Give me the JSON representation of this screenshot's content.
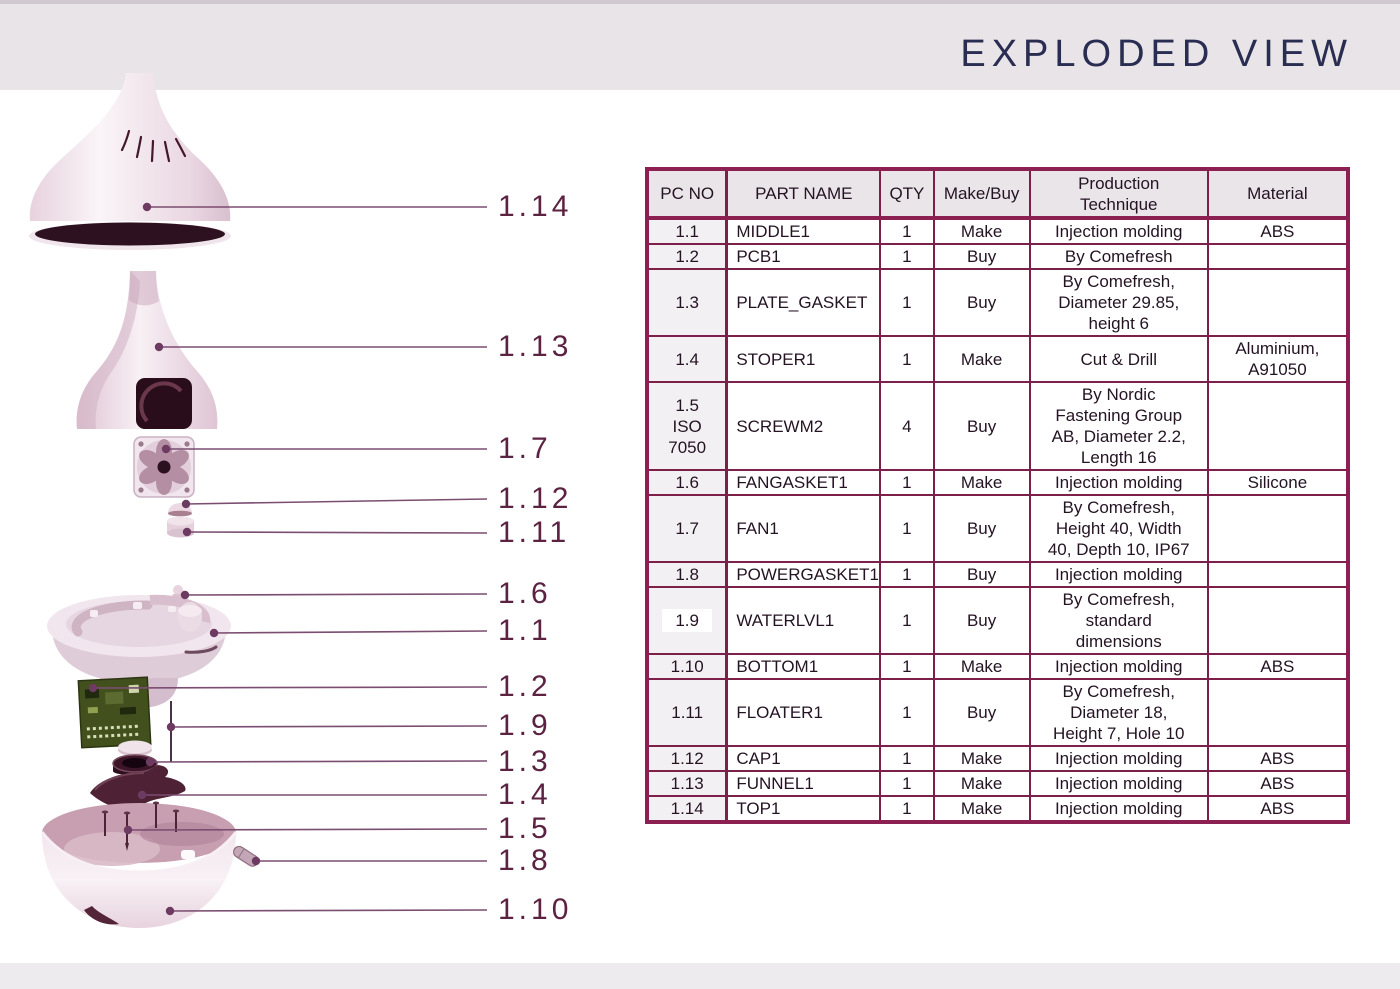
{
  "title": "EXPLODED VIEW",
  "table": {
    "headers": [
      "PC NO",
      "PART NAME",
      "QTY",
      "Make/Buy",
      "Production\nTechnique",
      "Material"
    ],
    "rows": [
      {
        "pc_no": "1.1",
        "part_name": "MIDDLE1",
        "qty": "1",
        "make_buy": "Make",
        "production": "Injection molding",
        "material": "ABS"
      },
      {
        "pc_no": "1.2",
        "part_name": "PCB1",
        "qty": "1",
        "make_buy": "Buy",
        "production": "By Comefresh",
        "material": ""
      },
      {
        "pc_no": "1.3",
        "part_name": "PLATE_GASKET",
        "qty": "1",
        "make_buy": "Buy",
        "production": "By Comefresh,\nDiameter 29.85,\nheight 6",
        "material": ""
      },
      {
        "pc_no": "1.4",
        "part_name": "STOPER1",
        "qty": "1",
        "make_buy": "Make",
        "production": "Cut & Drill",
        "material": "Aluminium,\nA91050"
      },
      {
        "pc_no": "1.5\nISO\n7050",
        "part_name": "SCREWM2",
        "qty": "4",
        "make_buy": "Buy",
        "production": "By Nordic\nFastening Group\nAB, Diameter 2.2,\nLength 16",
        "material": ""
      },
      {
        "pc_no": "1.6",
        "part_name": "FANGASKET1",
        "qty": "1",
        "make_buy": "Make",
        "production": "Injection molding",
        "material": "Silicone"
      },
      {
        "pc_no": "1.7",
        "part_name": "FAN1",
        "qty": "1",
        "make_buy": "Buy",
        "production": "By Comefresh,\nHeight 40, Width\n40, Depth 10, IP67",
        "material": ""
      },
      {
        "pc_no": "1.8",
        "part_name": "POWERGASKET1",
        "qty": "1",
        "make_buy": "Buy",
        "production": "Injection molding",
        "material": ""
      },
      {
        "pc_no": "1.9",
        "part_name": "WATERLVL1",
        "qty": "1",
        "make_buy": "Buy",
        "production": "By Comefresh,\nstandard\ndimensions",
        "material": ""
      },
      {
        "pc_no": "1.10",
        "part_name": "BOTTOM1",
        "qty": "1",
        "make_buy": "Make",
        "production": "Injection molding",
        "material": "ABS"
      },
      {
        "pc_no": "1.11",
        "part_name": "FLOATER1",
        "qty": "1",
        "make_buy": "Buy",
        "production": "By Comefresh,\nDiameter 18,\nHeight 7, Hole 10",
        "material": ""
      },
      {
        "pc_no": "1.12",
        "part_name": "CAP1",
        "qty": "1",
        "make_buy": "Make",
        "production": "Injection molding",
        "material": "ABS"
      },
      {
        "pc_no": "1.13",
        "part_name": "FUNNEL1",
        "qty": "1",
        "make_buy": "Make",
        "production": "Injection molding",
        "material": "ABS"
      },
      {
        "pc_no": "1.14",
        "part_name": "TOP1",
        "qty": "1",
        "make_buy": "Make",
        "production": "Injection molding",
        "material": "ABS"
      }
    ]
  },
  "diagram": {
    "callouts": [
      {
        "label": "1.14"
      },
      {
        "label": "1.13"
      },
      {
        "label": "1.7"
      },
      {
        "label": "1.12"
      },
      {
        "label": "1.11"
      },
      {
        "label": "1.6"
      },
      {
        "label": "1.1"
      },
      {
        "label": "1.2"
      },
      {
        "label": "1.9"
      },
      {
        "label": "1.3"
      },
      {
        "label": "1.4"
      },
      {
        "label": "1.5"
      },
      {
        "label": "1.8"
      },
      {
        "label": "1.10"
      }
    ]
  },
  "colors": {
    "accent_maroon": "#8c2053",
    "callout_text": "#5b2242",
    "leader_line": "#7b4d70",
    "title_text": "#292d51",
    "header_band": "#e8e4e8"
  }
}
